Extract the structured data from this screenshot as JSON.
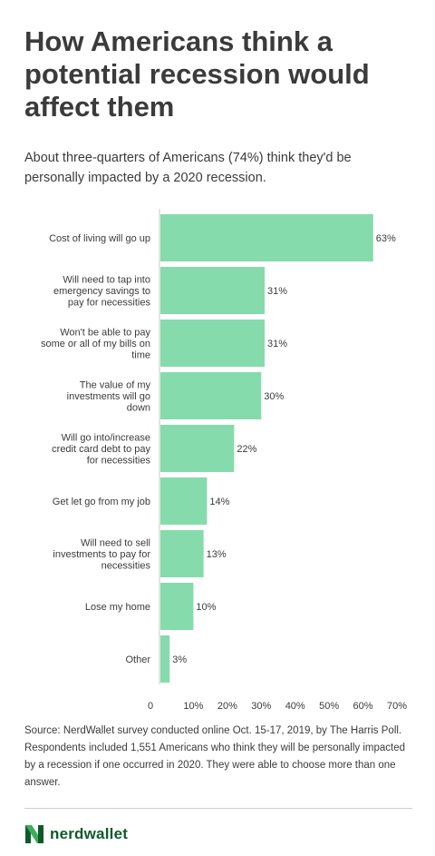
{
  "title": "How Americans think a potential recession would affect them",
  "subtitle": "About three-quarters of Americans (74%) think they'd be personally impacted by a 2020 recession.",
  "source": "Source: NerdWallet survey conducted online Oct. 15-17, 2019, by The Harris Poll. Respondents included 1,551 Americans who think they will be personally impacted by a recession if one occurred in 2020. They were able to choose more than one answer.",
  "brand": {
    "name": "nerdwallet",
    "logo_color": "#0f5a2c",
    "logo_accent": "#3cae5a"
  },
  "colors": {
    "bar": "#86dbac",
    "axis": "#c8c8c8",
    "text": "#3b3b3b"
  },
  "chart_data": {
    "type": "bar",
    "orientation": "horizontal",
    "categories": [
      [
        "Cost of living will go up"
      ],
      [
        "Will need to tap into",
        "emergency savings to",
        "pay for necessities"
      ],
      [
        "Won't be able to pay",
        "some or all of my bills on",
        "time"
      ],
      [
        "The value of my",
        "investments will go",
        "down"
      ],
      [
        "Will go into/increase",
        "credit card debt to pay",
        "for necessities"
      ],
      [
        "Get let go from my job"
      ],
      [
        "Will need to sell",
        "investments to pay for",
        "necessities"
      ],
      [
        "Lose my home"
      ],
      [
        "Other"
      ]
    ],
    "values": [
      63,
      31,
      31,
      30,
      22,
      14,
      13,
      10,
      3
    ],
    "value_labels": [
      "63%",
      "31%",
      "31%",
      "30%",
      "22%",
      "14%",
      "13%",
      "10%",
      "3%"
    ],
    "xlim": [
      0,
      70
    ],
    "xticks": [
      0,
      10,
      20,
      30,
      40,
      50,
      60,
      70
    ],
    "xtick_labels": [
      "0",
      "10%",
      "20%",
      "30%",
      "40%",
      "50%",
      "60%",
      "70%"
    ],
    "grid": false,
    "xlabel": "",
    "ylabel": ""
  }
}
